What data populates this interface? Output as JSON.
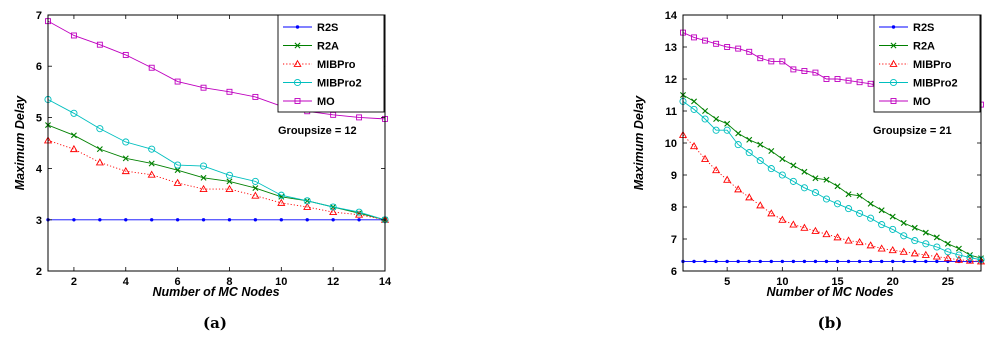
{
  "chart_data": [
    {
      "type": "line",
      "caption": "(a)",
      "xlabel": "Number of MC Nodes",
      "ylabel": "Maximum Delay",
      "xlim": [
        1,
        14
      ],
      "ylim": [
        2,
        7
      ],
      "xticks": [
        2,
        4,
        6,
        8,
        10,
        12,
        14
      ],
      "yticks": [
        2,
        3,
        4,
        5,
        6,
        7
      ],
      "grid": false,
      "legend_position": "top-right",
      "annotation": "Groupsize = 12",
      "x": [
        1,
        2,
        3,
        4,
        5,
        6,
        7,
        8,
        9,
        10,
        11,
        12,
        13,
        14
      ],
      "series": [
        {
          "name": "R2S",
          "color": "#0000ff",
          "marker": "dot",
          "style": "solid",
          "values": [
            3,
            3,
            3,
            3,
            3,
            3,
            3,
            3,
            3,
            3,
            3,
            3,
            3,
            3
          ]
        },
        {
          "name": "R2A",
          "color": "#008000",
          "marker": "x",
          "style": "solid",
          "values": [
            4.85,
            4.65,
            4.38,
            4.2,
            4.1,
            3.97,
            3.82,
            3.75,
            3.62,
            3.45,
            3.37,
            3.25,
            3.13,
            3.0
          ]
        },
        {
          "name": "MIBPro",
          "color": "#ff0000",
          "marker": "triangle",
          "style": "dotted",
          "values": [
            4.55,
            4.38,
            4.12,
            3.95,
            3.88,
            3.72,
            3.6,
            3.6,
            3.47,
            3.33,
            3.25,
            3.15,
            3.1,
            3.0
          ]
        },
        {
          "name": "MIBPro2",
          "color": "#00bfbf",
          "marker": "circle",
          "style": "solid",
          "values": [
            5.35,
            5.08,
            4.78,
            4.52,
            4.38,
            4.07,
            4.05,
            3.87,
            3.75,
            3.48,
            3.37,
            3.25,
            3.15,
            3.0
          ]
        },
        {
          "name": "MO",
          "color": "#bf00bf",
          "marker": "square",
          "style": "solid",
          "values": [
            6.88,
            6.6,
            6.42,
            6.22,
            5.97,
            5.7,
            5.58,
            5.5,
            5.4,
            5.22,
            5.12,
            5.05,
            5.0,
            4.97
          ]
        }
      ]
    },
    {
      "type": "line",
      "caption": "(b)",
      "xlabel": "Number of MC Nodes",
      "ylabel": "Maximum Delay",
      "xlim": [
        1,
        28
      ],
      "ylim": [
        6,
        14
      ],
      "xticks": [
        5,
        10,
        15,
        20,
        25
      ],
      "yticks": [
        6,
        7,
        8,
        9,
        10,
        11,
        12,
        13,
        14
      ],
      "grid": false,
      "legend_position": "top-right",
      "annotation": "Groupsize = 21",
      "x": [
        1,
        2,
        3,
        4,
        5,
        6,
        7,
        8,
        9,
        10,
        11,
        12,
        13,
        14,
        15,
        16,
        17,
        18,
        19,
        20,
        21,
        22,
        23,
        24,
        25,
        26,
        27,
        28
      ],
      "series": [
        {
          "name": "R2S",
          "color": "#0000ff",
          "marker": "dot",
          "style": "solid",
          "values": [
            6.3,
            6.3,
            6.3,
            6.3,
            6.3,
            6.3,
            6.3,
            6.3,
            6.3,
            6.3,
            6.3,
            6.3,
            6.3,
            6.3,
            6.3,
            6.3,
            6.3,
            6.3,
            6.3,
            6.3,
            6.3,
            6.3,
            6.3,
            6.3,
            6.3,
            6.3,
            6.3,
            6.3
          ]
        },
        {
          "name": "R2A",
          "color": "#008000",
          "marker": "x",
          "style": "solid",
          "values": [
            11.5,
            11.3,
            11.0,
            10.75,
            10.6,
            10.3,
            10.1,
            9.95,
            9.75,
            9.5,
            9.3,
            9.1,
            8.9,
            8.85,
            8.65,
            8.4,
            8.35,
            8.1,
            7.9,
            7.7,
            7.5,
            7.35,
            7.2,
            7.05,
            6.85,
            6.7,
            6.5,
            6.4
          ]
        },
        {
          "name": "MIBPro",
          "color": "#ff0000",
          "marker": "triangle",
          "style": "dotted",
          "values": [
            10.25,
            9.9,
            9.5,
            9.15,
            8.85,
            8.55,
            8.3,
            8.05,
            7.8,
            7.6,
            7.45,
            7.35,
            7.25,
            7.15,
            7.05,
            6.95,
            6.9,
            6.8,
            6.7,
            6.65,
            6.6,
            6.55,
            6.5,
            6.45,
            6.4,
            6.35,
            6.32,
            6.3
          ]
        },
        {
          "name": "MIBPro2",
          "color": "#00bfbf",
          "marker": "circle",
          "style": "solid",
          "values": [
            11.3,
            11.05,
            10.75,
            10.4,
            10.4,
            9.95,
            9.7,
            9.45,
            9.2,
            9.0,
            8.8,
            8.6,
            8.45,
            8.25,
            8.1,
            7.95,
            7.8,
            7.65,
            7.45,
            7.3,
            7.1,
            6.95,
            6.85,
            6.75,
            6.6,
            6.5,
            6.42,
            6.35
          ]
        },
        {
          "name": "MO",
          "color": "#bf00bf",
          "marker": "square",
          "style": "solid",
          "values": [
            13.45,
            13.3,
            13.2,
            13.1,
            13.0,
            12.95,
            12.85,
            12.65,
            12.55,
            12.55,
            12.3,
            12.25,
            12.2,
            12.0,
            12.0,
            11.95,
            11.9,
            11.85,
            11.75,
            11.6,
            11.55,
            11.5,
            11.45,
            11.4,
            11.3,
            11.25,
            11.2,
            11.2
          ]
        }
      ]
    }
  ]
}
